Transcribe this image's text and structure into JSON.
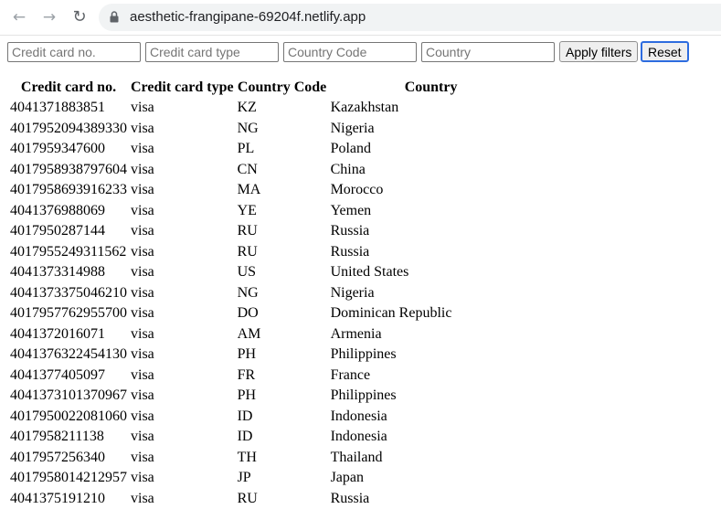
{
  "browser": {
    "back_icon": "arrow-left-icon",
    "forward_icon": "arrow-right-icon",
    "reload_icon": "reload-icon",
    "lock_icon": "lock-icon",
    "url": "aesthetic-frangipane-69204f.netlify.app"
  },
  "filters": {
    "card_no_placeholder": "Credit card no.",
    "card_type_placeholder": "Credit card type",
    "country_code_placeholder": "Country Code",
    "country_placeholder": "Country",
    "apply_label": "Apply filters",
    "reset_label": "Reset"
  },
  "table": {
    "headers": [
      "Credit card no.",
      "Credit card type",
      "Country Code",
      "Country"
    ],
    "rows": [
      [
        "4041371883851",
        "visa",
        "KZ",
        "Kazakhstan"
      ],
      [
        "4017952094389330",
        "visa",
        "NG",
        "Nigeria"
      ],
      [
        "4017959347600",
        "visa",
        "PL",
        "Poland"
      ],
      [
        "4017958938797604",
        "visa",
        "CN",
        "China"
      ],
      [
        "4017958693916233",
        "visa",
        "MA",
        "Morocco"
      ],
      [
        "4041376988069",
        "visa",
        "YE",
        "Yemen"
      ],
      [
        "4017950287144",
        "visa",
        "RU",
        "Russia"
      ],
      [
        "4017955249311562",
        "visa",
        "RU",
        "Russia"
      ],
      [
        "4041373314988",
        "visa",
        "US",
        "United States"
      ],
      [
        "4041373375046210",
        "visa",
        "NG",
        "Nigeria"
      ],
      [
        "4017957762955700",
        "visa",
        "DO",
        "Dominican Republic"
      ],
      [
        "4041372016071",
        "visa",
        "AM",
        "Armenia"
      ],
      [
        "4041376322454130",
        "visa",
        "PH",
        "Philippines"
      ],
      [
        "4041377405097",
        "visa",
        "FR",
        "France"
      ],
      [
        "4041373101370967",
        "visa",
        "PH",
        "Philippines"
      ],
      [
        "4017950022081060",
        "visa",
        "ID",
        "Indonesia"
      ],
      [
        "4017958211138",
        "visa",
        "ID",
        "Indonesia"
      ],
      [
        "4017957256340",
        "visa",
        "TH",
        "Thailand"
      ],
      [
        "4017958014212957",
        "visa",
        "JP",
        "Japan"
      ],
      [
        "4041375191210",
        "visa",
        "RU",
        "Russia"
      ]
    ]
  }
}
